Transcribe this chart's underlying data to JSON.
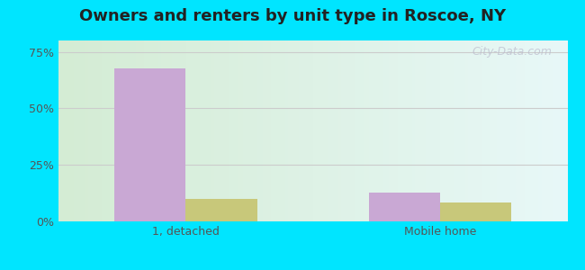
{
  "title": "Owners and renters by unit type in Roscoe, NY",
  "categories": [
    "1, detached",
    "Mobile home"
  ],
  "owner_values": [
    0.676,
    0.126
  ],
  "renter_values": [
    0.1,
    0.085
  ],
  "owner_color": "#c9a8d4",
  "renter_color": "#c8c87a",
  "ylim": [
    0,
    0.8
  ],
  "yticks": [
    0,
    0.25,
    0.5,
    0.75
  ],
  "ytick_labels": [
    "0%",
    "25%",
    "50%",
    "75%"
  ],
  "background_outer": "#00e5ff",
  "watermark": "City-Data.com",
  "bar_width": 0.28,
  "bg_colors_left": "#d4ecd4",
  "bg_colors_right": "#e8f8f8"
}
